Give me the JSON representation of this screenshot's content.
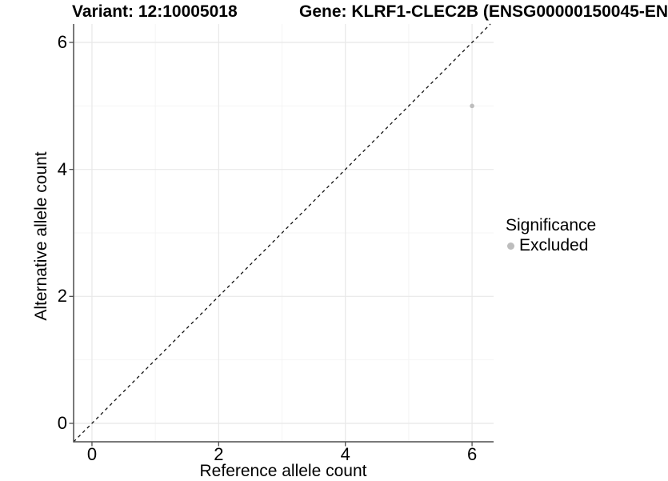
{
  "header": {
    "variant_title": "Variant: 12:10005018",
    "gene_title": "Gene: KLRF1-CLEC2B (ENSG00000150045-EN"
  },
  "chart_data": {
    "type": "scatter",
    "xlabel": "Reference allele count",
    "ylabel": "Alternative allele count",
    "xlim": [
      -0.29,
      6.34
    ],
    "ylim": [
      -0.29,
      6.29
    ],
    "x_major_ticks": [
      0,
      2,
      4,
      6
    ],
    "x_minor_ticks": [
      1,
      3,
      5
    ],
    "y_major_ticks": [
      0,
      2,
      4,
      6
    ],
    "y_minor_ticks": [
      1,
      3,
      5
    ],
    "grid": "major and minor gridlines on white background",
    "series": [
      {
        "name": "Excluded",
        "color": "#bdbdbd",
        "points": [
          {
            "x": 6,
            "y": 5
          }
        ]
      }
    ],
    "reference_line": {
      "description": "identity line y = x",
      "slope": 1,
      "intercept": 0,
      "style": "dashed",
      "color": "#111111"
    },
    "legend": {
      "title": "Significance",
      "position": "right-middle",
      "entries": [
        {
          "label": "Excluded",
          "color": "#bdbdbd"
        }
      ]
    }
  },
  "colors": {
    "background": "#ffffff",
    "axis_line": "#4d4d4d",
    "grid_major": "#e8e8e8",
    "grid_minor": "#f4f4f4",
    "point": "#bdbdbd",
    "text": "#000000"
  }
}
